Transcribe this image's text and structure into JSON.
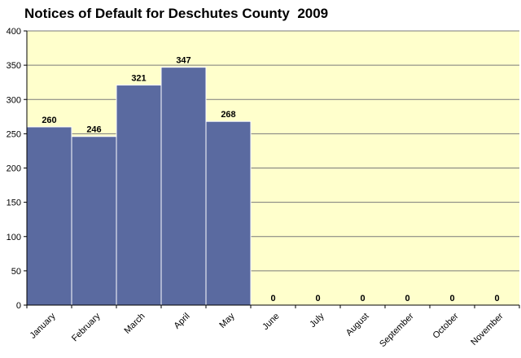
{
  "chart_data": {
    "type": "bar",
    "title": "Notices of Default for Deschutes County  2009",
    "categories": [
      "January",
      "February",
      "March",
      "April",
      "May",
      "June",
      "July",
      "August",
      "September",
      "October",
      "November"
    ],
    "values": [
      260,
      246,
      321,
      347,
      268,
      0,
      0,
      0,
      0,
      0,
      0
    ],
    "ylim": [
      0,
      400
    ],
    "yticks": [
      0,
      50,
      100,
      150,
      200,
      250,
      300,
      350,
      400
    ],
    "xlabel": "",
    "ylabel": "",
    "grid": true,
    "legend": "none",
    "colors": {
      "bar": "#5a6aa0",
      "plot_background": "#ffffcc",
      "gridline": "#7a7a7a",
      "axis": "#000000"
    }
  }
}
